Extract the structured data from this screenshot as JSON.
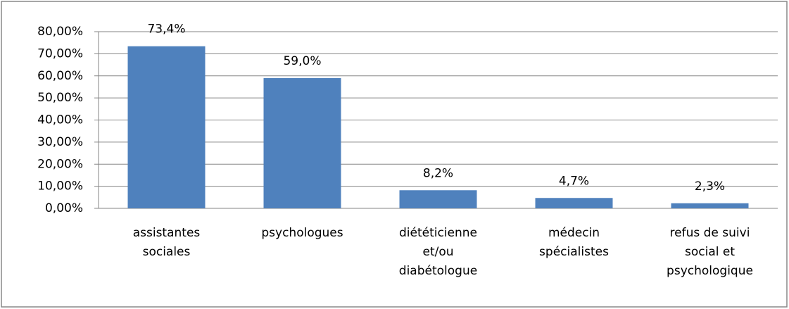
{
  "chart_data": {
    "type": "bar",
    "categories": [
      "assistantes sociales",
      "psychologues",
      "diététicienne et/ou diabétologue",
      "médecin spécialistes",
      "refus de suivi social et psychologique"
    ],
    "values": [
      73.4,
      59.0,
      8.2,
      4.7,
      2.3
    ],
    "value_labels": [
      "73,4%",
      "59,0%",
      "8,2%",
      "4,7%",
      "2,3%"
    ],
    "color": "#4f81bd",
    "ylim": [
      0,
      80
    ],
    "yticks": [
      {
        "value": 0,
        "label": "0,00%"
      },
      {
        "value": 10,
        "label": "10,00%"
      },
      {
        "value": 20,
        "label": "20,00%"
      },
      {
        "value": 30,
        "label": "30,00%"
      },
      {
        "value": 40,
        "label": "40,00%"
      },
      {
        "value": 50,
        "label": "50,00%"
      },
      {
        "value": 60,
        "label": "60,00%"
      },
      {
        "value": 70,
        "label": "70,00%"
      },
      {
        "value": 80,
        "label": "80,00%"
      }
    ],
    "grid": true
  }
}
